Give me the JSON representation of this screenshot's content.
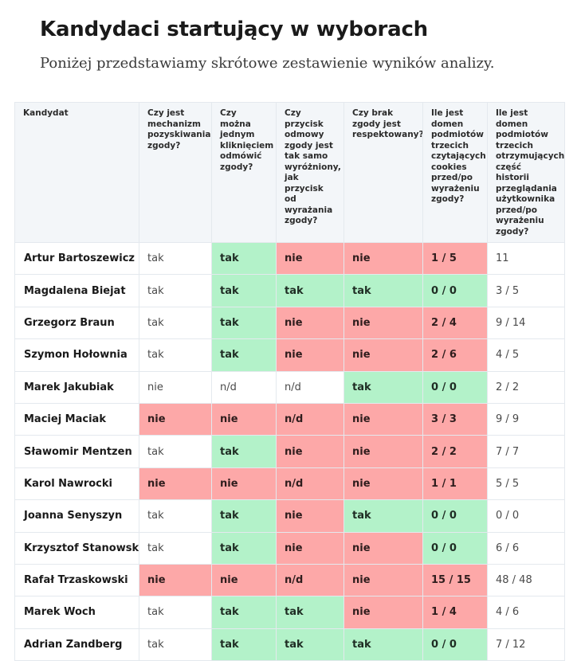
{
  "title": "Kandydaci startujący w wyborach",
  "subtitle": "Poniżej przedstawiamy skrótowe zestawienie wyników analizy.",
  "colors": {
    "positive": "#b3f2c9",
    "negative": "#fda8a8",
    "header_background": "#f3f6f9",
    "border": "#e4e9ee"
  },
  "table": {
    "headers": [
      "Kandydat",
      "Czy jest mechanizm pozyskiwania zgody?",
      "Czy można jednym kliknięciem odmówić zgody?",
      "Czy przycisk odmowy zgody jest tak samo wyróżniony, jak przycisk od wyrażania zgody?",
      "Czy brak zgody jest respektowany?",
      "Ile jest domen podmiotów trzecich czytających cookies przed/po wyrażeniu zgody?",
      "Ile jest domen podmiotów trzecich otrzymujących część historii przeglądania użytkownika przed/po wyrażeniu zgody?"
    ],
    "rows": [
      {
        "name": "Artur Bartoszewicz",
        "values": [
          "tak",
          "tak",
          "nie",
          "nie",
          "1 / 5",
          "11"
        ],
        "status": [
          "none",
          "yes",
          "no",
          "no",
          "no",
          "none"
        ]
      },
      {
        "name": "Magdalena Biejat",
        "values": [
          "tak",
          "tak",
          "tak",
          "tak",
          "0 / 0",
          "3 / 5"
        ],
        "status": [
          "none",
          "yes",
          "yes",
          "yes",
          "yes",
          "none"
        ]
      },
      {
        "name": "Grzegorz Braun",
        "values": [
          "tak",
          "tak",
          "nie",
          "nie",
          "2 / 4",
          "9 / 14"
        ],
        "status": [
          "none",
          "yes",
          "no",
          "no",
          "no",
          "none"
        ]
      },
      {
        "name": "Szymon Hołownia",
        "values": [
          "tak",
          "tak",
          "nie",
          "nie",
          "2 / 6",
          "4 / 5"
        ],
        "status": [
          "none",
          "yes",
          "no",
          "no",
          "no",
          "none"
        ]
      },
      {
        "name": "Marek Jakubiak",
        "values": [
          "nie",
          "n/d",
          "n/d",
          "tak",
          "0 / 0",
          "2 / 2"
        ],
        "status": [
          "none",
          "none",
          "none",
          "yes",
          "yes",
          "none"
        ]
      },
      {
        "name": "Maciej Maciak",
        "values": [
          "nie",
          "nie",
          "n/d",
          "nie",
          "3 / 3",
          "9 / 9"
        ],
        "status": [
          "no",
          "no",
          "no",
          "no",
          "no",
          "none"
        ]
      },
      {
        "name": "Sławomir Mentzen",
        "values": [
          "tak",
          "tak",
          "nie",
          "nie",
          "2 / 2",
          "7 / 7"
        ],
        "status": [
          "none",
          "yes",
          "no",
          "no",
          "no",
          "none"
        ]
      },
      {
        "name": "Karol Nawrocki",
        "values": [
          "nie",
          "nie",
          "n/d",
          "nie",
          "1 / 1",
          "5 / 5"
        ],
        "status": [
          "no",
          "no",
          "no",
          "no",
          "no",
          "none"
        ]
      },
      {
        "name": "Joanna Senyszyn",
        "values": [
          "tak",
          "tak",
          "nie",
          "tak",
          "0 / 0",
          "0 / 0"
        ],
        "status": [
          "none",
          "yes",
          "no",
          "yes",
          "yes",
          "none"
        ]
      },
      {
        "name": "Krzysztof Stanowski",
        "values": [
          "tak",
          "tak",
          "nie",
          "nie",
          "0 / 0",
          "6 / 6"
        ],
        "status": [
          "none",
          "yes",
          "no",
          "no",
          "yes",
          "none"
        ]
      },
      {
        "name": "Rafał Trzaskowski",
        "values": [
          "nie",
          "nie",
          "n/d",
          "nie",
          "15 / 15",
          "48 / 48"
        ],
        "status": [
          "no",
          "no",
          "no",
          "no",
          "no",
          "none"
        ]
      },
      {
        "name": "Marek Woch",
        "values": [
          "tak",
          "tak",
          "tak",
          "nie",
          "1 / 4",
          "4 / 6"
        ],
        "status": [
          "none",
          "yes",
          "yes",
          "no",
          "no",
          "none"
        ]
      },
      {
        "name": "Adrian Zandberg",
        "values": [
          "tak",
          "tak",
          "tak",
          "tak",
          "0 / 0",
          "7 / 12"
        ],
        "status": [
          "none",
          "yes",
          "yes",
          "yes",
          "yes",
          "none"
        ]
      }
    ]
  }
}
